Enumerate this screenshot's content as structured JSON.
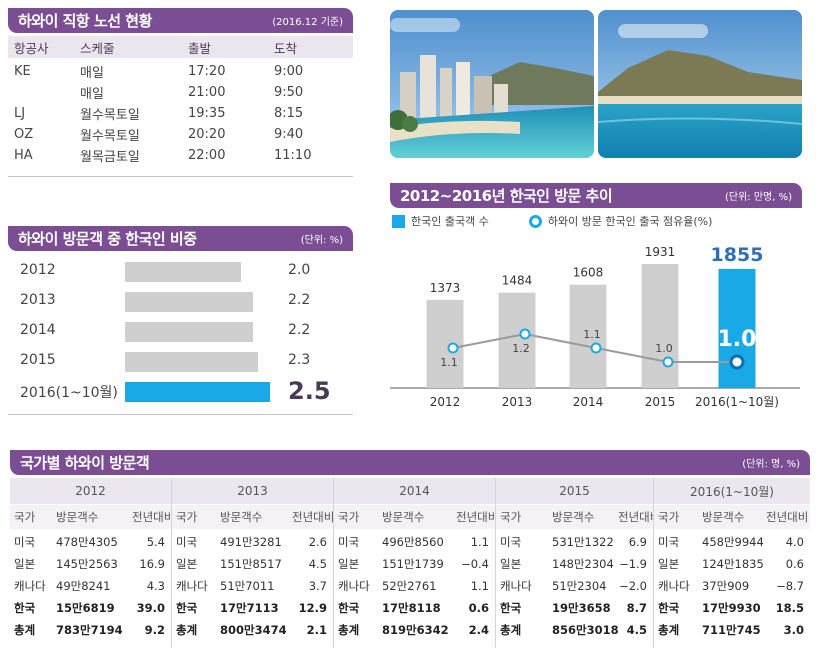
{
  "routes": {
    "title": "하와이 직항 노선 현황",
    "date": "(2016.12 기준)",
    "headers": [
      "항공사",
      "스케줄",
      "출발",
      "도착"
    ],
    "rows": [
      [
        "KE",
        "매일",
        "17:20",
        "9:00"
      ],
      [
        "",
        "매일",
        "21:00",
        "9:50"
      ],
      [
        "LJ",
        "월수목토일",
        "19:35",
        "8:15"
      ],
      [
        "OZ",
        "월수목토일",
        "20:20",
        "9:40"
      ],
      [
        "HA",
        "월목금토일",
        "22:00",
        "11:10"
      ]
    ]
  },
  "share": {
    "title": "하와이 방문객 중 한국인 비중",
    "unit": "(단위: %)",
    "items": [
      {
        "label": "2012",
        "value": 2.0,
        "text": "2.0"
      },
      {
        "label": "2013",
        "value": 2.2,
        "text": "2.2"
      },
      {
        "label": "2014",
        "value": 2.2,
        "text": "2.2"
      },
      {
        "label": "2015",
        "value": 2.3,
        "text": "2.3"
      },
      {
        "label": "2016(1~10월)",
        "value": 2.5,
        "text": "2.5"
      }
    ]
  },
  "trend": {
    "title": "2012~2016년 한국인 방문 추이",
    "unit": "(단위: 만명, %)",
    "legend_bar": "한국인 출국객 수",
    "legend_line": "하와이 방문 한국인 출국 점유율(%)",
    "categories": [
      "2012",
      "2013",
      "2014",
      "2015",
      "2016(1~10월)"
    ],
    "bars": [
      "1373",
      "1484",
      "1608",
      "1931",
      "1855"
    ],
    "points": [
      "1.1",
      "1.2",
      "1.1",
      "1.0",
      "1.0"
    ]
  },
  "visitors": {
    "title": "국가별 하와이 방문객",
    "unit": "(단위: 명, %)",
    "years": [
      "2012",
      "2013",
      "2014",
      "2015",
      "2016(1~10월)"
    ],
    "sub_headers": [
      "국가",
      "방문객수",
      "전년대비"
    ],
    "blocks": [
      [
        [
          "미국",
          "478만4305",
          "5.4"
        ],
        [
          "일본",
          "145만2563",
          "16.9"
        ],
        [
          "캐나다",
          "49만8241",
          "4.3"
        ],
        [
          "한국",
          "15만6819",
          "39.0"
        ],
        [
          "총계",
          "783만7194",
          "9.2"
        ]
      ],
      [
        [
          "미국",
          "491만3281",
          "2.6"
        ],
        [
          "일본",
          "151만8517",
          "4.5"
        ],
        [
          "캐나다",
          "51만7011",
          "3.7"
        ],
        [
          "한국",
          "17만7113",
          "12.9"
        ],
        [
          "총계",
          "800만3474",
          "2.1"
        ]
      ],
      [
        [
          "미국",
          "496만8560",
          "1.1"
        ],
        [
          "일본",
          "151만1739",
          "−0.4"
        ],
        [
          "캐나다",
          "52만2761",
          "1.1"
        ],
        [
          "한국",
          "17만8118",
          "0.6"
        ],
        [
          "총계",
          "819만6342",
          "2.4"
        ]
      ],
      [
        [
          "미국",
          "531만1322",
          "6.9"
        ],
        [
          "일본",
          "148만2304",
          "−1.9"
        ],
        [
          "캐나다",
          "51만2304",
          "−2.0"
        ],
        [
          "한국",
          "19만3658",
          "8.7"
        ],
        [
          "총계",
          "856만3018",
          "4.5"
        ]
      ],
      [
        [
          "미국",
          "458만9944",
          "4.0"
        ],
        [
          "일본",
          "124만1835",
          "0.6"
        ],
        [
          "캐나다",
          "37만909",
          "−8.7"
        ],
        [
          "한국",
          "17만9930",
          "18.5"
        ],
        [
          "총계",
          "711만745",
          "3.0"
        ]
      ]
    ]
  },
  "chart_data": [
    {
      "type": "bar",
      "title": "하와이 방문객 중 한국인 비중",
      "categories": [
        "2012",
        "2013",
        "2014",
        "2015",
        "2016(1~10월)"
      ],
      "values": [
        2.0,
        2.2,
        2.2,
        2.3,
        2.5
      ]
    },
    {
      "type": "bar",
      "title": "2012~2016년 한국인 방문 추이",
      "categories": [
        "2012",
        "2013",
        "2014",
        "2015",
        "2016(1~10월)"
      ],
      "series": [
        {
          "name": "한국인 출국객 수",
          "type": "bar",
          "values": [
            1373,
            1484,
            1608,
            1931,
            1855
          ]
        },
        {
          "name": "하와이 방문 한국인 출국 점유율(%)",
          "type": "line",
          "values": [
            1.1,
            1.2,
            1.1,
            1.0,
            1.0
          ]
        }
      ]
    }
  ],
  "colors": {
    "header": "#7b4e94",
    "highlight": "#19a9e6",
    "bar": "#cfcfcf",
    "line": "#9a9a9a"
  }
}
